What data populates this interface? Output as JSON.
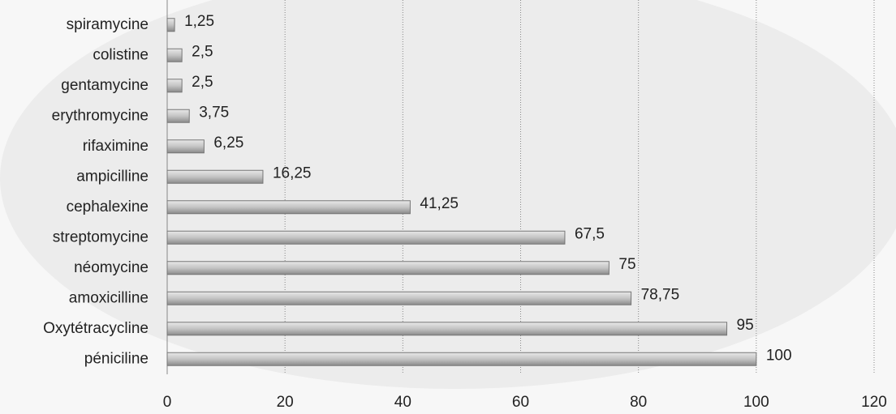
{
  "chart_data": {
    "type": "barh",
    "categories": [
      "spiramycine",
      "colistine",
      "gentamycine",
      "erythromycine",
      "rifaximine",
      "ampicilline",
      "cephalexine",
      "streptomycine",
      "néomycine",
      "amoxicilline",
      "Oxytétracycline",
      "péniciline"
    ],
    "values": [
      1.25,
      2.5,
      2.5,
      3.75,
      6.25,
      16.25,
      41.25,
      67.5,
      75,
      78.75,
      95,
      100
    ],
    "value_labels": [
      "1,25",
      "2,5",
      "2,5",
      "3,75",
      "6,25",
      "16,25",
      "41,25",
      "67,5",
      "75",
      "78,75",
      "95",
      "100"
    ],
    "color": "#b5b5b5",
    "xlim": [
      0,
      120
    ],
    "xticks": [
      0,
      20,
      40,
      60,
      80,
      100,
      120
    ],
    "grid": true
  }
}
